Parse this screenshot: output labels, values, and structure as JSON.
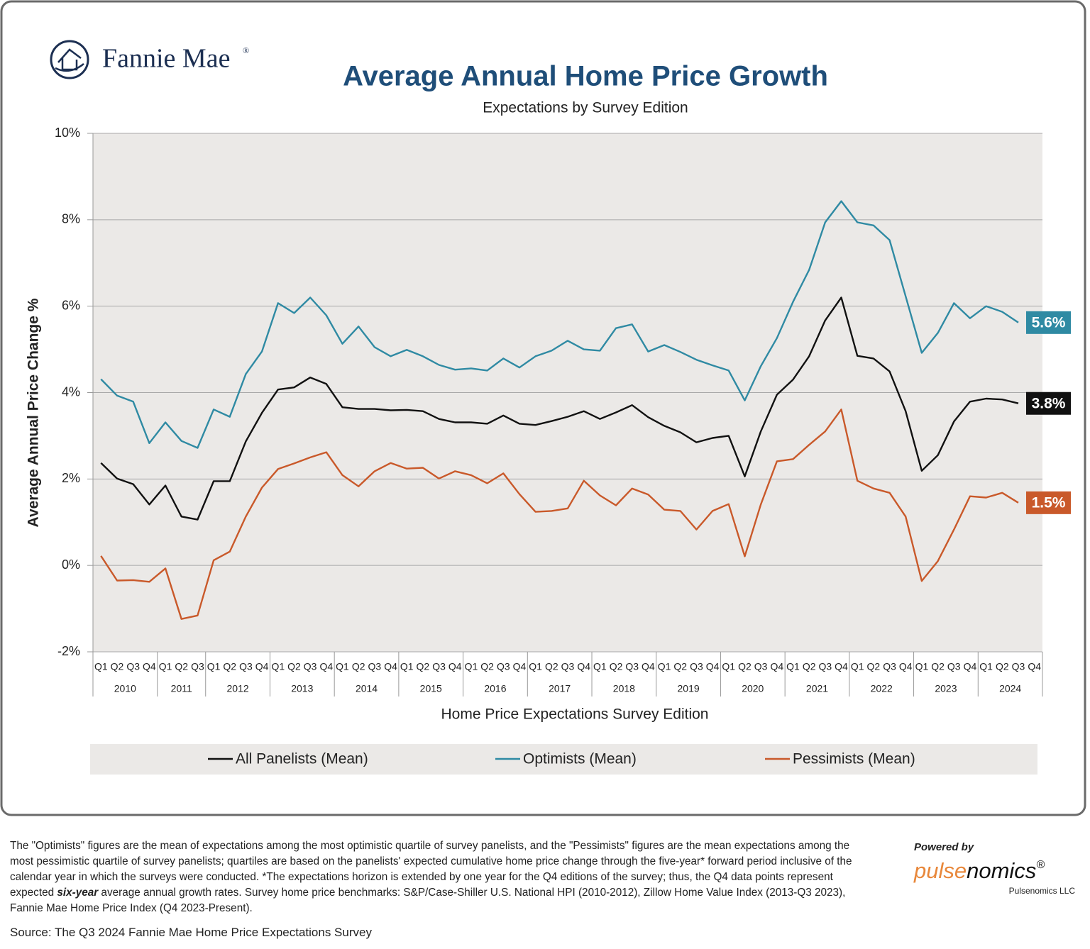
{
  "logo": {
    "text": "Fannie Mae",
    "mark": "®"
  },
  "chart_data": {
    "type": "line",
    "title": "Average Annual Home Price Growth",
    "subtitle": "Expectations by Survey Edition",
    "y_label": "Average Annual Price Change %",
    "x_label": "Home Price Expectations Survey Edition",
    "category_groups": [
      {
        "name": "2010",
        "categories": [
          "Q1",
          "Q2",
          "Q3",
          "Q4"
        ]
      },
      {
        "name": "2011",
        "categories": [
          "Q1",
          "Q2",
          "Q3"
        ]
      },
      {
        "name": "2012",
        "categories": [
          "Q1",
          "Q2",
          "Q3",
          "Q4"
        ]
      },
      {
        "name": "2013",
        "categories": [
          "Q1",
          "Q2",
          "Q3",
          "Q4"
        ]
      },
      {
        "name": "2014",
        "categories": [
          "Q1",
          "Q2",
          "Q3",
          "Q4"
        ]
      },
      {
        "name": "2015",
        "categories": [
          "Q1",
          "Q2",
          "Q3",
          "Q4"
        ]
      },
      {
        "name": "2016",
        "categories": [
          "Q1",
          "Q2",
          "Q3",
          "Q4"
        ]
      },
      {
        "name": "2017",
        "categories": [
          "Q1",
          "Q2",
          "Q3",
          "Q4"
        ]
      },
      {
        "name": "2018",
        "categories": [
          "Q1",
          "Q2",
          "Q3",
          "Q4"
        ]
      },
      {
        "name": "2019",
        "categories": [
          "Q1",
          "Q2",
          "Q3",
          "Q4"
        ]
      },
      {
        "name": "2020",
        "categories": [
          "Q1",
          "Q2",
          "Q3",
          "Q4"
        ]
      },
      {
        "name": "2021",
        "categories": [
          "Q1",
          "Q2",
          "Q3",
          "Q4"
        ]
      },
      {
        "name": "2022",
        "categories": [
          "Q1",
          "Q2",
          "Q3",
          "Q4"
        ]
      },
      {
        "name": "2023",
        "categories": [
          "Q1",
          "Q2",
          "Q3",
          "Q4"
        ]
      },
      {
        "name": "2024",
        "categories": [
          "Q1",
          "Q2",
          "Q3",
          "Q4"
        ]
      }
    ],
    "ylim": [
      -2,
      10
    ],
    "yticks": [
      {
        "value": -2,
        "label": "-2%"
      },
      {
        "value": 0,
        "label": "0%"
      },
      {
        "value": 2,
        "label": "2%"
      },
      {
        "value": 4,
        "label": "4%"
      },
      {
        "value": 6,
        "label": "6%"
      },
      {
        "value": 8,
        "label": "8%"
      },
      {
        "value": 10,
        "label": "10%"
      }
    ],
    "grid": true,
    "legend": "bottom",
    "series": [
      {
        "name": "All Panelists (Mean)",
        "color": "#111111",
        "values": [
          2.37,
          2.01,
          1.88,
          1.41,
          1.85,
          1.13,
          1.06,
          1.95,
          1.95,
          2.87,
          3.53,
          4.07,
          4.12,
          4.35,
          4.2,
          3.66,
          3.62,
          3.62,
          3.59,
          3.6,
          3.57,
          3.39,
          3.31,
          3.31,
          3.28,
          3.47,
          3.28,
          3.25,
          3.34,
          3.44,
          3.57,
          3.39,
          3.54,
          3.71,
          3.43,
          3.23,
          3.08,
          2.85,
          2.95,
          3.0,
          2.06,
          3.1,
          3.95,
          4.3,
          4.84,
          5.67,
          6.2,
          4.85,
          4.79,
          4.49,
          3.57,
          2.19,
          2.55,
          3.33,
          3.79,
          3.86,
          3.84,
          3.75,
          null
        ],
        "value_labels": [
          null,
          null,
          null,
          null,
          null,
          null,
          null,
          null,
          null,
          null,
          null,
          null,
          null,
          null,
          null,
          null,
          null,
          null,
          null,
          null,
          null,
          null,
          null,
          null,
          null,
          null,
          null,
          null,
          null,
          null,
          null,
          null,
          null,
          null,
          null,
          null,
          null,
          null,
          null,
          null,
          null,
          null,
          null,
          null,
          null,
          null,
          null,
          null,
          null,
          null,
          null,
          null,
          null,
          null,
          null,
          null,
          null,
          "3.8%",
          null
        ]
      },
      {
        "name": "Optimists (Mean)",
        "color": "#2f8aa3",
        "values": [
          4.31,
          3.93,
          3.79,
          2.83,
          3.31,
          2.88,
          2.72,
          3.61,
          3.44,
          4.43,
          4.95,
          6.07,
          5.84,
          6.2,
          5.79,
          5.13,
          5.53,
          5.05,
          4.84,
          4.99,
          4.84,
          4.64,
          4.53,
          4.56,
          4.51,
          4.79,
          4.58,
          4.84,
          4.97,
          5.2,
          5.0,
          4.97,
          5.49,
          5.58,
          4.95,
          5.1,
          4.94,
          4.76,
          4.63,
          4.51,
          3.82,
          4.61,
          5.26,
          6.1,
          6.84,
          7.94,
          8.43,
          7.94,
          7.87,
          7.53,
          6.23,
          4.92,
          5.38,
          6.07,
          5.72,
          6.0,
          5.87,
          5.62,
          null
        ],
        "value_labels": [
          null,
          null,
          null,
          null,
          null,
          null,
          null,
          null,
          null,
          null,
          null,
          null,
          null,
          null,
          null,
          null,
          null,
          null,
          null,
          null,
          null,
          null,
          null,
          null,
          null,
          null,
          null,
          null,
          null,
          null,
          null,
          null,
          null,
          null,
          null,
          null,
          null,
          null,
          null,
          null,
          null,
          null,
          null,
          null,
          null,
          null,
          null,
          null,
          null,
          null,
          null,
          null,
          null,
          null,
          null,
          null,
          null,
          "5.6%",
          null
        ]
      },
      {
        "name": "Pessimists (Mean)",
        "color": "#c9592a",
        "values": [
          0.22,
          -0.35,
          -0.34,
          -0.38,
          -0.07,
          -1.24,
          -1.16,
          0.12,
          0.32,
          1.13,
          1.8,
          2.23,
          2.36,
          2.5,
          2.62,
          2.09,
          1.83,
          2.18,
          2.37,
          2.24,
          2.26,
          2.01,
          2.18,
          2.09,
          1.9,
          2.13,
          1.65,
          1.24,
          1.26,
          1.32,
          1.96,
          1.62,
          1.39,
          1.78,
          1.64,
          1.29,
          1.26,
          0.83,
          1.26,
          1.42,
          0.21,
          1.41,
          2.41,
          2.46,
          2.79,
          3.1,
          3.61,
          1.96,
          1.78,
          1.68,
          1.13,
          -0.36,
          0.1,
          0.83,
          1.6,
          1.57,
          1.68,
          1.45,
          null
        ],
        "value_labels": [
          null,
          null,
          null,
          null,
          null,
          null,
          null,
          null,
          null,
          null,
          null,
          null,
          null,
          null,
          null,
          null,
          null,
          null,
          null,
          null,
          null,
          null,
          null,
          null,
          null,
          null,
          null,
          null,
          null,
          null,
          null,
          null,
          null,
          null,
          null,
          null,
          null,
          null,
          null,
          null,
          null,
          null,
          null,
          null,
          null,
          null,
          null,
          null,
          null,
          null,
          null,
          null,
          null,
          null,
          null,
          null,
          null,
          "1.5%",
          null
        ]
      }
    ]
  },
  "footnote": {
    "before": "The \"Optimists\" figures are the mean of expectations  among the most optimistic quartile of survey panelists, and the \"Pessimists\" figures are the mean expectations among the most pessimistic quartile of survey panelists; quartiles are based on the panelists' expected cumulative home price change through the five-year* forward period inclusive of the calendar year in which the surveys were conducted. *The expectations horizon is extended by one year for the Q4 editions of the survey; thus, the Q4 data points represent expected ",
    "emphasis": "six-year",
    "after": " average annual growth rates. Survey home price benchmarks: S&P/Case-Shiller U.S. National HPI (2010-2012),  Zillow Home Value Index (2013-Q3 2023), Fannie Mae Home Price Index (Q4 2023-Present)."
  },
  "source": "Source: The Q3 2024 Fannie Mae Home Price Expectations Survey",
  "credit": {
    "powered": "Powered by",
    "brand_a": "pulse",
    "brand_b": "nomics",
    "brand_mark": "®",
    "company": "Pulsenomics LLC"
  }
}
